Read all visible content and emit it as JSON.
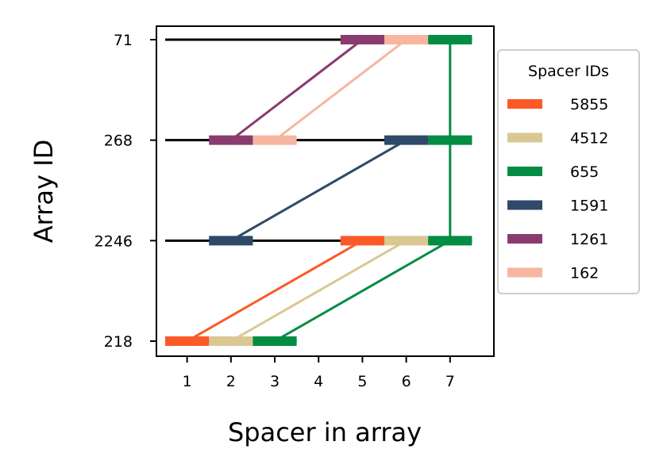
{
  "chart_data": {
    "type": "line",
    "xlabel": "Spacer in array",
    "ylabel": "Array ID",
    "xlim": [
      0.3,
      8.0
    ],
    "x_ticks": [
      1,
      2,
      3,
      4,
      5,
      6,
      7
    ],
    "arrays": [
      "71",
      "268",
      "2246",
      "218"
    ],
    "grid": false,
    "legend": {
      "title": "Spacer IDs",
      "placement": "right",
      "entries": [
        "5855",
        "4512",
        "655",
        "1591",
        "1261",
        "162"
      ]
    },
    "colors": {
      "5855": "#fb5a28",
      "4512": "#dac892",
      "655": "#038c44",
      "1591": "#2e4a68",
      "1261": "#8a3c70",
      "162": "#f6b6a0",
      "backbone": "#000000"
    },
    "array_lengths": {
      "71": 7,
      "268": 7,
      "2246": 7,
      "218": 3
    },
    "spacers": [
      {
        "array": "71",
        "position": 5,
        "spacer": "1261"
      },
      {
        "array": "71",
        "position": 6,
        "spacer": "162"
      },
      {
        "array": "71",
        "position": 7,
        "spacer": "655"
      },
      {
        "array": "268",
        "position": 2,
        "spacer": "1261"
      },
      {
        "array": "268",
        "position": 3,
        "spacer": "162"
      },
      {
        "array": "268",
        "position": 6,
        "spacer": "1591"
      },
      {
        "array": "268",
        "position": 7,
        "spacer": "655"
      },
      {
        "array": "2246",
        "position": 2,
        "spacer": "1591"
      },
      {
        "array": "2246",
        "position": 5,
        "spacer": "5855"
      },
      {
        "array": "2246",
        "position": 6,
        "spacer": "4512"
      },
      {
        "array": "2246",
        "position": 7,
        "spacer": "655"
      },
      {
        "array": "218",
        "position": 1,
        "spacer": "5855"
      },
      {
        "array": "218",
        "position": 2,
        "spacer": "4512"
      },
      {
        "array": "218",
        "position": 3,
        "spacer": "655"
      }
    ],
    "links": [
      {
        "spacer": "1261",
        "from": {
          "array": "71",
          "position": 5
        },
        "to": {
          "array": "268",
          "position": 2
        }
      },
      {
        "spacer": "162",
        "from": {
          "array": "71",
          "position": 6
        },
        "to": {
          "array": "268",
          "position": 3
        }
      },
      {
        "spacer": "655",
        "from": {
          "array": "71",
          "position": 7
        },
        "to": {
          "array": "268",
          "position": 7
        }
      },
      {
        "spacer": "1591",
        "from": {
          "array": "268",
          "position": 6
        },
        "to": {
          "array": "2246",
          "position": 2
        }
      },
      {
        "spacer": "655",
        "from": {
          "array": "268",
          "position": 7
        },
        "to": {
          "array": "2246",
          "position": 7
        }
      },
      {
        "spacer": "5855",
        "from": {
          "array": "2246",
          "position": 5
        },
        "to": {
          "array": "218",
          "position": 1
        }
      },
      {
        "spacer": "4512",
        "from": {
          "array": "2246",
          "position": 6
        },
        "to": {
          "array": "218",
          "position": 2
        }
      },
      {
        "spacer": "655",
        "from": {
          "array": "2246",
          "position": 7
        },
        "to": {
          "array": "218",
          "position": 3
        }
      }
    ]
  }
}
